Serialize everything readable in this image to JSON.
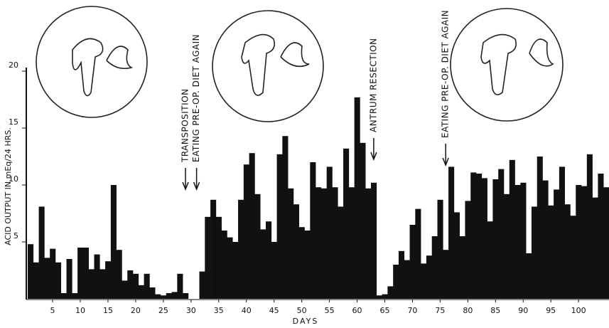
{
  "chart_data": {
    "type": "bar",
    "y_label": "ACID OUTPUT IN mEq/24 HRS.",
    "x_label": "DAYS",
    "x": [
      1,
      2,
      3,
      4,
      5,
      6,
      7,
      8,
      9,
      10,
      11,
      12,
      13,
      14,
      15,
      16,
      17,
      18,
      19,
      20,
      21,
      22,
      23,
      24,
      25,
      26,
      27,
      28,
      29,
      30,
      31,
      32,
      33,
      34,
      35,
      36,
      37,
      38,
      39,
      40,
      41,
      42,
      43,
      44,
      45,
      46,
      47,
      48,
      49,
      50,
      51,
      52,
      53,
      54,
      55,
      56,
      57,
      58,
      59,
      60,
      61,
      62,
      63,
      64,
      65,
      66,
      67,
      68,
      69,
      70,
      71,
      72,
      73,
      74,
      75,
      76,
      77,
      78,
      79,
      80,
      81,
      82,
      83,
      84,
      85,
      86,
      87,
      88,
      89,
      90,
      91,
      92,
      93,
      94,
      95,
      96,
      97,
      98,
      99,
      100,
      101,
      102,
      103,
      104,
      105
    ],
    "values": [
      4.8,
      3.2,
      8.1,
      3.6,
      4.4,
      3.2,
      0.5,
      3.5,
      0.5,
      4.5,
      4.5,
      2.6,
      3.9,
      2.6,
      3.3,
      10,
      4.3,
      1.6,
      2.5,
      2.2,
      1.2,
      2.2,
      1.0,
      0.4,
      0.3,
      0.5,
      0.6,
      2.2,
      0.5,
      0,
      0,
      2.4,
      7.2,
      8.7,
      7.2,
      6.0,
      5.4,
      5.0,
      8.7,
      11.8,
      12.8,
      9.2,
      6.1,
      6.8,
      5.0,
      12.7,
      14.3,
      9.7,
      8.3,
      6.3,
      6.0,
      12.0,
      9.8,
      9.7,
      11.6,
      9.8,
      8.1,
      13.2,
      9.8,
      17.7,
      13.7,
      9.7,
      10.2,
      0.3,
      0.4,
      1.1,
      3.0,
      4.2,
      3.4,
      6.5,
      7.9,
      3.1,
      3.8,
      5.5,
      8.7,
      4.3,
      11.6,
      7.6,
      5.5,
      8.6,
      11.1,
      11.0,
      10.6,
      6.8,
      10.5,
      11.4,
      9.2,
      12.2,
      10.0,
      10.2,
      4.0,
      8.1,
      12.5,
      10.4,
      8.2,
      9.6,
      11.6,
      8.3,
      7.3,
      10.0,
      9.9,
      12.7,
      8.9,
      11.0,
      9.8
    ],
    "color": "#111111",
    "xlim": [
      0.5,
      105.5
    ],
    "ylim": [
      0,
      20
    ],
    "xticks": [
      5,
      10,
      15,
      20,
      25,
      30,
      35,
      40,
      45,
      50,
      55,
      60,
      65,
      70,
      75,
      80,
      85,
      90,
      95,
      100
    ],
    "yticks": [
      5,
      10,
      15,
      20
    ],
    "annotations": [
      {
        "text": "TRANSPOSITION",
        "x": 29
      },
      {
        "text": "EATING PRE-OP. DIET AGAIN",
        "x": 31
      },
      {
        "text": "ANTRUM RESECTION",
        "x": 63
      },
      {
        "text": "EATING PRE-OP. DIET AGAIN",
        "x": 76
      }
    ]
  }
}
